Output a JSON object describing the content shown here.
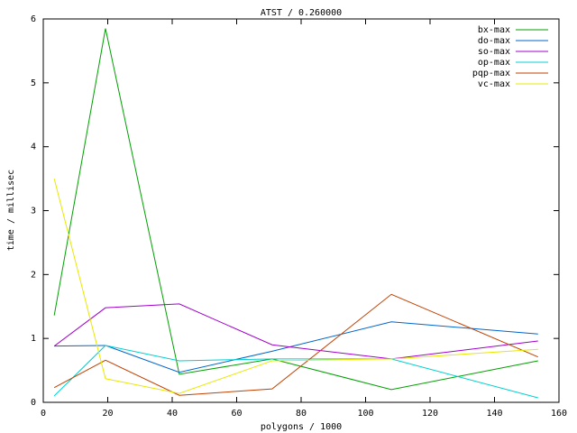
{
  "chart_data": {
    "type": "line",
    "title": "ATST / 0.260000",
    "x_label": "polygons / 1000",
    "y_label": "time / millisec",
    "x": [
      3.4,
      19.3,
      42.2,
      71,
      108,
      153.5
    ],
    "series": [
      {
        "name": "bx-max",
        "color": "#00a000",
        "values": [
          1.36,
          5.85,
          0.44,
          0.68,
          0.2,
          0.65
        ]
      },
      {
        "name": "do-max",
        "color": "#0066cc",
        "values": [
          0.88,
          0.89,
          0.47,
          0.8,
          1.26,
          1.07
        ]
      },
      {
        "name": "so-max",
        "color": "#a000cc",
        "values": [
          0.88,
          1.48,
          1.54,
          0.9,
          0.68,
          0.96
        ]
      },
      {
        "name": "op-max",
        "color": "#00d0d0",
        "values": [
          0.1,
          0.89,
          0.65,
          0.68,
          0.68,
          0.07
        ]
      },
      {
        "name": "pqp-max",
        "color": "#c04000",
        "values": [
          0.23,
          0.66,
          0.11,
          0.21,
          1.69,
          0.71
        ]
      },
      {
        "name": "vc-max",
        "color": "#e8e800",
        "values": [
          3.5,
          0.37,
          0.14,
          0.65,
          0.68,
          0.83
        ]
      }
    ],
    "xlim": [
      0,
      160
    ],
    "xticks": [
      0,
      20,
      40,
      60,
      80,
      100,
      120,
      140,
      160
    ],
    "ylim": [
      0,
      6
    ],
    "yticks": [
      0,
      1,
      2,
      3,
      4,
      5,
      6
    ],
    "legend": "top-right"
  }
}
